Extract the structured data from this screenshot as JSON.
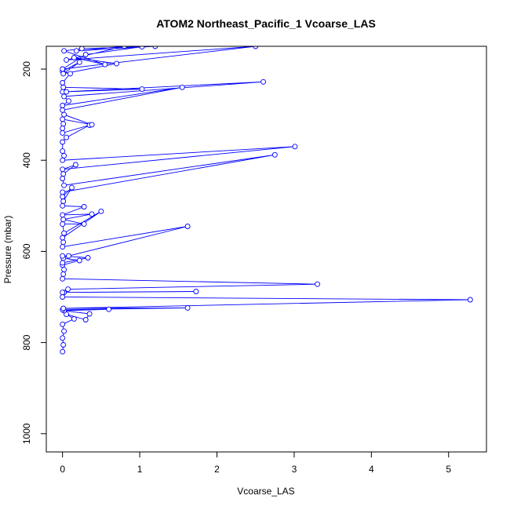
{
  "chart_data": {
    "type": "line",
    "title": "ATOM2 Northeast_Pacific_1 Vcoarse_LAS",
    "xlabel": "Vcoarse_LAS",
    "ylabel": "Pressure (mbar)",
    "xlim": [
      -0.21,
      5.49
    ],
    "ylim": [
      1040,
      150
    ],
    "y_reversed": true,
    "x_ticks": [
      0,
      1,
      2,
      3,
      4,
      5
    ],
    "y_ticks": [
      200,
      400,
      600,
      800,
      1000
    ],
    "grid": false,
    "line_color": "#0000ff",
    "marker": "open-circle",
    "series": [
      {
        "points": [
          [
            0.0,
            820
          ],
          [
            0.01,
            805
          ],
          [
            0.0,
            790
          ],
          [
            0.02,
            775
          ],
          [
            0.0,
            760
          ],
          [
            0.15,
            748
          ],
          [
            0.05,
            738
          ],
          [
            0.3,
            750
          ],
          [
            0.35,
            737
          ],
          [
            0.02,
            730
          ],
          [
            0.6,
            727
          ],
          [
            0.0,
            728
          ],
          [
            1.62,
            724
          ],
          [
            0.01,
            725
          ],
          [
            5.28,
            706
          ],
          [
            0.0,
            700
          ],
          [
            0.02,
            690
          ],
          [
            1.73,
            688
          ],
          [
            0.0,
            690
          ],
          [
            0.07,
            683
          ],
          [
            3.3,
            672
          ],
          [
            0.0,
            660
          ],
          [
            0.01,
            650
          ],
          [
            0.02,
            640
          ],
          [
            0.0,
            630
          ],
          [
            0.22,
            620
          ],
          [
            0.01,
            615
          ],
          [
            0.0,
            625
          ],
          [
            0.33,
            614
          ],
          [
            0.0,
            610
          ],
          [
            0.08,
            610
          ],
          [
            1.62,
            545
          ],
          [
            0.0,
            590
          ],
          [
            0.01,
            580
          ],
          [
            0.0,
            570
          ],
          [
            0.5,
            512
          ],
          [
            0.02,
            560
          ],
          [
            0.0,
            540
          ],
          [
            0.28,
            540
          ],
          [
            0.01,
            530
          ],
          [
            0.38,
            518
          ],
          [
            0.0,
            520
          ],
          [
            0.28,
            502
          ],
          [
            0.0,
            500
          ],
          [
            0.01,
            490
          ],
          [
            0.12,
            460
          ],
          [
            0.0,
            480
          ],
          [
            0.0,
            470
          ],
          [
            2.75,
            388
          ],
          [
            0.02,
            455
          ],
          [
            0.0,
            440
          ],
          [
            0.01,
            430
          ],
          [
            0.17,
            410
          ],
          [
            0.0,
            420
          ],
          [
            3.01,
            370
          ],
          [
            0.0,
            400
          ],
          [
            0.02,
            390
          ],
          [
            0.0,
            380
          ],
          [
            0.0,
            360
          ],
          [
            0.05,
            350
          ],
          [
            0.35,
            323
          ],
          [
            0.0,
            340
          ],
          [
            0.0,
            330
          ],
          [
            0.01,
            320
          ],
          [
            0.0,
            310
          ],
          [
            0.38,
            322
          ],
          [
            0.02,
            300
          ],
          [
            0.0,
            290
          ],
          [
            1.55,
            240
          ],
          [
            0.0,
            280
          ],
          [
            0.08,
            270
          ],
          [
            0.02,
            260
          ],
          [
            2.6,
            228
          ],
          [
            0.0,
            250
          ],
          [
            1.03,
            244
          ],
          [
            0.01,
            240
          ],
          [
            0.05,
            250
          ],
          [
            0.0,
            230
          ],
          [
            0.1,
            210
          ],
          [
            0.0,
            205
          ],
          [
            0.22,
            185
          ],
          [
            0.01,
            210
          ],
          [
            0.7,
            188
          ],
          [
            0.15,
            175
          ],
          [
            0.55,
            190
          ],
          [
            0.02,
            160
          ],
          [
            0.25,
            155
          ],
          [
            1.03,
            151
          ],
          [
            0.3,
            168
          ],
          [
            0.0,
            200
          ],
          [
            2.5,
            150
          ],
          [
            0.05,
            180
          ],
          [
            0.8,
            150
          ],
          [
            0.18,
            160
          ],
          [
            1.2,
            150
          ]
        ]
      }
    ]
  }
}
